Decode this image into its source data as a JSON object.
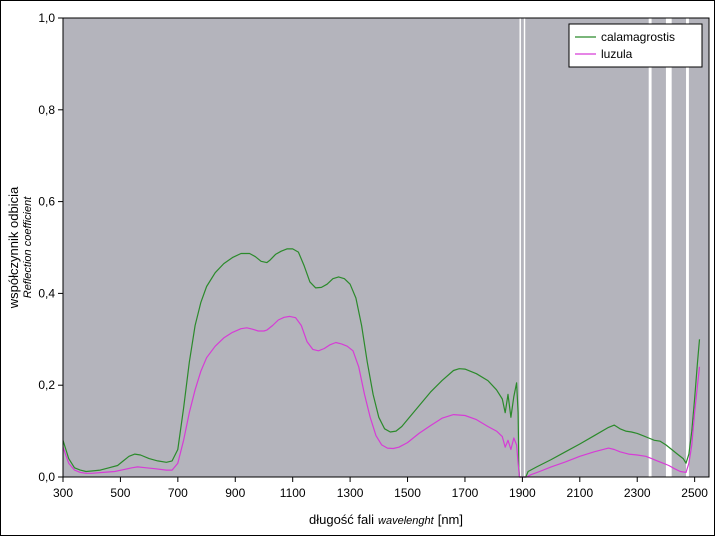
{
  "chart_data": {
    "type": "line",
    "xlabel_main": "długość fali",
    "xlabel_italic": "wavelenght",
    "xlabel_unit": "[nm]",
    "ylabel_main": "współczynnik odbicia",
    "ylabel_italic": "Reflection coefficient",
    "xlim": [
      300,
      2550
    ],
    "ylim": [
      0,
      1
    ],
    "xticks": [
      300,
      500,
      700,
      900,
      1100,
      1300,
      1500,
      1700,
      1900,
      2100,
      2300,
      2500
    ],
    "yticks": [
      "0,0",
      "0,2",
      "0,4",
      "0,6",
      "0,8",
      "1,0"
    ],
    "ytick_values": [
      0,
      0.2,
      0.4,
      0.6,
      0.8,
      1.0
    ],
    "grid": false,
    "legend_position": "top-right",
    "plot_background": "#b4b4bc",
    "gap_bands": [
      [
        1890,
        1895
      ],
      [
        1905,
        1910
      ],
      [
        2340,
        2350
      ],
      [
        2400,
        2420
      ],
      [
        2470,
        2480
      ]
    ],
    "series": [
      {
        "name": "calamagrostis",
        "color": "#2b8a2b",
        "points": [
          [
            300,
            0.08
          ],
          [
            320,
            0.04
          ],
          [
            340,
            0.02
          ],
          [
            360,
            0.015
          ],
          [
            380,
            0.012
          ],
          [
            400,
            0.013
          ],
          [
            430,
            0.015
          ],
          [
            460,
            0.02
          ],
          [
            490,
            0.025
          ],
          [
            510,
            0.035
          ],
          [
            530,
            0.045
          ],
          [
            550,
            0.05
          ],
          [
            570,
            0.048
          ],
          [
            600,
            0.04
          ],
          [
            630,
            0.035
          ],
          [
            660,
            0.032
          ],
          [
            680,
            0.035
          ],
          [
            700,
            0.06
          ],
          [
            720,
            0.15
          ],
          [
            740,
            0.25
          ],
          [
            760,
            0.33
          ],
          [
            780,
            0.38
          ],
          [
            800,
            0.415
          ],
          [
            830,
            0.445
          ],
          [
            860,
            0.465
          ],
          [
            890,
            0.478
          ],
          [
            920,
            0.487
          ],
          [
            950,
            0.487
          ],
          [
            970,
            0.48
          ],
          [
            990,
            0.47
          ],
          [
            1010,
            0.467
          ],
          [
            1020,
            0.472
          ],
          [
            1040,
            0.485
          ],
          [
            1060,
            0.492
          ],
          [
            1080,
            0.497
          ],
          [
            1100,
            0.497
          ],
          [
            1120,
            0.49
          ],
          [
            1140,
            0.46
          ],
          [
            1160,
            0.425
          ],
          [
            1180,
            0.412
          ],
          [
            1200,
            0.413
          ],
          [
            1220,
            0.42
          ],
          [
            1240,
            0.432
          ],
          [
            1260,
            0.436
          ],
          [
            1280,
            0.432
          ],
          [
            1300,
            0.42
          ],
          [
            1320,
            0.39
          ],
          [
            1340,
            0.33
          ],
          [
            1360,
            0.25
          ],
          [
            1380,
            0.18
          ],
          [
            1400,
            0.13
          ],
          [
            1420,
            0.105
          ],
          [
            1440,
            0.098
          ],
          [
            1460,
            0.1
          ],
          [
            1480,
            0.11
          ],
          [
            1500,
            0.125
          ],
          [
            1540,
            0.155
          ],
          [
            1580,
            0.185
          ],
          [
            1620,
            0.21
          ],
          [
            1660,
            0.232
          ],
          [
            1680,
            0.236
          ],
          [
            1700,
            0.235
          ],
          [
            1740,
            0.225
          ],
          [
            1780,
            0.21
          ],
          [
            1810,
            0.19
          ],
          [
            1830,
            0.17
          ],
          [
            1840,
            0.14
          ],
          [
            1850,
            0.18
          ],
          [
            1860,
            0.13
          ],
          [
            1870,
            0.175
          ],
          [
            1880,
            0.205
          ],
          [
            1885,
            0.14
          ],
          [
            1888,
            0.02
          ],
          [
            1890,
            0.0
          ],
          [
            1912,
            0.0
          ],
          [
            1920,
            0.012
          ],
          [
            1950,
            0.022
          ],
          [
            2000,
            0.038
          ],
          [
            2050,
            0.055
          ],
          [
            2100,
            0.072
          ],
          [
            2150,
            0.09
          ],
          [
            2200,
            0.108
          ],
          [
            2220,
            0.113
          ],
          [
            2240,
            0.105
          ],
          [
            2260,
            0.1
          ],
          [
            2280,
            0.098
          ],
          [
            2300,
            0.095
          ],
          [
            2320,
            0.09
          ],
          [
            2340,
            0.085
          ],
          [
            2360,
            0.08
          ],
          [
            2380,
            0.078
          ],
          [
            2400,
            0.07
          ],
          [
            2420,
            0.06
          ],
          [
            2440,
            0.05
          ],
          [
            2460,
            0.04
          ],
          [
            2470,
            0.03
          ],
          [
            2480,
            0.05
          ],
          [
            2490,
            0.1
          ],
          [
            2500,
            0.17
          ],
          [
            2510,
            0.25
          ],
          [
            2517,
            0.3
          ]
        ]
      },
      {
        "name": "luzula",
        "color": "#d63cd6",
        "points": [
          [
            300,
            0.065
          ],
          [
            320,
            0.03
          ],
          [
            340,
            0.015
          ],
          [
            360,
            0.01
          ],
          [
            380,
            0.008
          ],
          [
            400,
            0.008
          ],
          [
            440,
            0.01
          ],
          [
            480,
            0.012
          ],
          [
            510,
            0.016
          ],
          [
            540,
            0.02
          ],
          [
            560,
            0.022
          ],
          [
            590,
            0.02
          ],
          [
            620,
            0.018
          ],
          [
            660,
            0.015
          ],
          [
            680,
            0.015
          ],
          [
            700,
            0.03
          ],
          [
            720,
            0.08
          ],
          [
            740,
            0.14
          ],
          [
            760,
            0.19
          ],
          [
            780,
            0.23
          ],
          [
            800,
            0.26
          ],
          [
            830,
            0.285
          ],
          [
            860,
            0.303
          ],
          [
            890,
            0.315
          ],
          [
            920,
            0.323
          ],
          [
            940,
            0.325
          ],
          [
            960,
            0.322
          ],
          [
            980,
            0.318
          ],
          [
            1000,
            0.318
          ],
          [
            1010,
            0.32
          ],
          [
            1030,
            0.33
          ],
          [
            1050,
            0.342
          ],
          [
            1070,
            0.348
          ],
          [
            1090,
            0.35
          ],
          [
            1110,
            0.347
          ],
          [
            1130,
            0.33
          ],
          [
            1150,
            0.295
          ],
          [
            1170,
            0.278
          ],
          [
            1190,
            0.275
          ],
          [
            1210,
            0.28
          ],
          [
            1230,
            0.288
          ],
          [
            1250,
            0.293
          ],
          [
            1270,
            0.29
          ],
          [
            1290,
            0.285
          ],
          [
            1310,
            0.275
          ],
          [
            1330,
            0.24
          ],
          [
            1350,
            0.18
          ],
          [
            1370,
            0.13
          ],
          [
            1390,
            0.09
          ],
          [
            1410,
            0.07
          ],
          [
            1430,
            0.063
          ],
          [
            1450,
            0.062
          ],
          [
            1470,
            0.065
          ],
          [
            1500,
            0.075
          ],
          [
            1540,
            0.095
          ],
          [
            1580,
            0.112
          ],
          [
            1620,
            0.128
          ],
          [
            1660,
            0.136
          ],
          [
            1700,
            0.134
          ],
          [
            1740,
            0.125
          ],
          [
            1780,
            0.11
          ],
          [
            1810,
            0.1
          ],
          [
            1830,
            0.088
          ],
          [
            1840,
            0.065
          ],
          [
            1850,
            0.08
          ],
          [
            1860,
            0.06
          ],
          [
            1870,
            0.085
          ],
          [
            1880,
            0.07
          ],
          [
            1885,
            0.03
          ],
          [
            1890,
            0.0
          ],
          [
            1915,
            0.0
          ],
          [
            1930,
            0.005
          ],
          [
            1960,
            0.012
          ],
          [
            2000,
            0.022
          ],
          [
            2050,
            0.033
          ],
          [
            2100,
            0.045
          ],
          [
            2150,
            0.055
          ],
          [
            2200,
            0.063
          ],
          [
            2220,
            0.06
          ],
          [
            2240,
            0.055
          ],
          [
            2270,
            0.05
          ],
          [
            2300,
            0.048
          ],
          [
            2330,
            0.045
          ],
          [
            2350,
            0.04
          ],
          [
            2370,
            0.035
          ],
          [
            2390,
            0.03
          ],
          [
            2410,
            0.025
          ],
          [
            2430,
            0.018
          ],
          [
            2450,
            0.012
          ],
          [
            2470,
            0.01
          ],
          [
            2480,
            0.03
          ],
          [
            2490,
            0.07
          ],
          [
            2500,
            0.14
          ],
          [
            2510,
            0.2
          ],
          [
            2517,
            0.24
          ]
        ]
      }
    ]
  }
}
